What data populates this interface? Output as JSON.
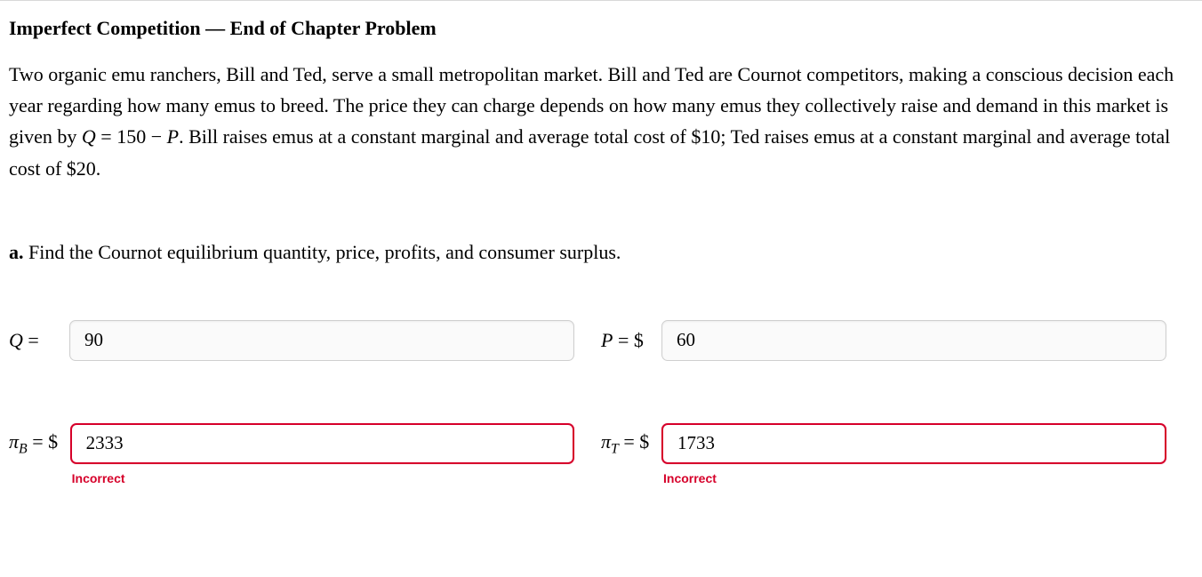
{
  "title": "Imperfect Competition — End of Chapter Problem",
  "body_html": "Two organic emu ranchers, Bill and Ted, serve a small metropolitan market. Bill and Ted are Cournot competitors, making a conscious decision each year regarding how many emus to breed. The price they can charge depends on how many emus they collectively raise and demand in this market is given by <span class=\"math-i\">Q</span> = 150 − <span class=\"math-i\">P</span>. Bill raises emus at a constant marginal and average total cost of $10; Ted raises emus at a constant marginal and average total cost of $20.",
  "part_a": {
    "label": "a.",
    "text": "Find the Cournot equilibrium quantity, price, profits, and consumer surplus."
  },
  "fields": {
    "q": {
      "label_html": "<span class=\"math-i\">Q</span> = ",
      "value": "90",
      "state": "ok"
    },
    "p": {
      "label_html": "<span class=\"math-i\">P</span> = $ ",
      "value": "60",
      "state": "ok"
    },
    "pb": {
      "label_html": "<span class=\"math-i\">π</span><span class=\"sub\">B</span> = $ ",
      "value": "2333",
      "state": "incorrect",
      "feedback": "Incorrect"
    },
    "pt": {
      "label_html": "<span class=\"math-i\">π</span><span class=\"sub\">T</span> = $ ",
      "value": "1733",
      "state": "incorrect",
      "feedback": "Incorrect"
    }
  },
  "colors": {
    "error": "#d6002a",
    "input_border": "#cfcfcf",
    "input_bg": "#fafafa",
    "divider": "#d8d8d8"
  }
}
